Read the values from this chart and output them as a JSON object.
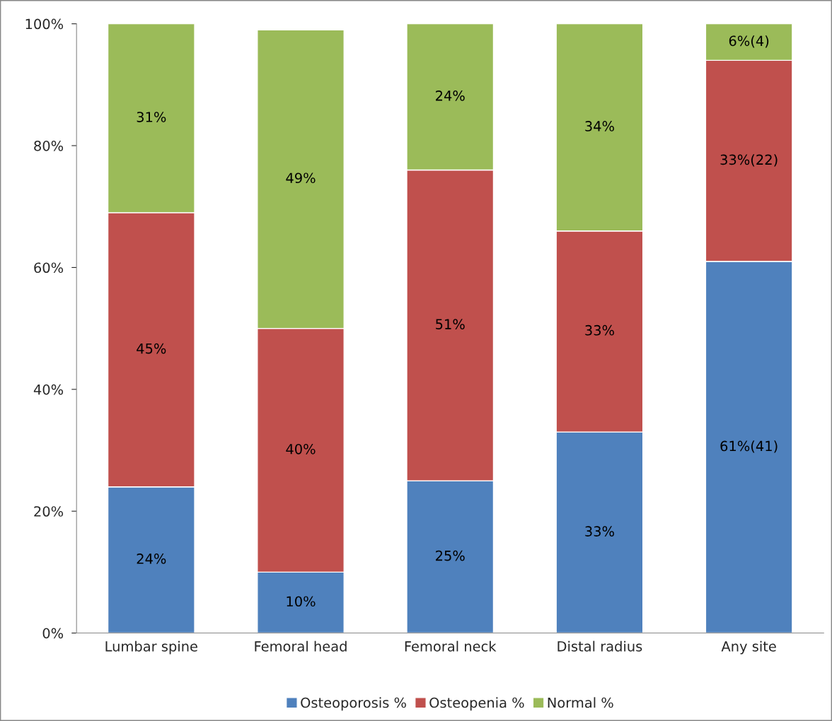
{
  "chart_data": {
    "type": "bar",
    "stacked": true,
    "categories": [
      "Lumbar spine",
      "Femoral head",
      "Femoral neck",
      "Distal radius",
      "Any site"
    ],
    "series": [
      {
        "name": "Osteoporosis %",
        "color": "#4f81bd",
        "values": [
          24,
          10,
          25,
          33,
          61
        ],
        "value_labels": [
          "24%",
          "10%",
          "25%",
          "33%",
          "61%(41)"
        ]
      },
      {
        "name": "Osteopenia %",
        "color": "#c0504d",
        "values": [
          45,
          40,
          51,
          33,
          33
        ],
        "value_labels": [
          "45%",
          "40%",
          "51%",
          "33%",
          "33%(22)"
        ]
      },
      {
        "name": "Normal %",
        "color": "#9bbb59",
        "values": [
          31,
          49,
          24,
          34,
          6
        ],
        "value_labels": [
          "31%",
          "49%",
          "24%",
          "34%",
          "6%(4)"
        ]
      }
    ],
    "ylim": [
      0,
      100
    ],
    "yticks": [
      {
        "value": 0,
        "label": "0%"
      },
      {
        "value": 20,
        "label": "20%"
      },
      {
        "value": 40,
        "label": "40%"
      },
      {
        "value": 60,
        "label": "60%"
      },
      {
        "value": 80,
        "label": "80%"
      },
      {
        "value": 100,
        "label": "100%"
      }
    ],
    "grid": false,
    "legend": "bottom"
  }
}
